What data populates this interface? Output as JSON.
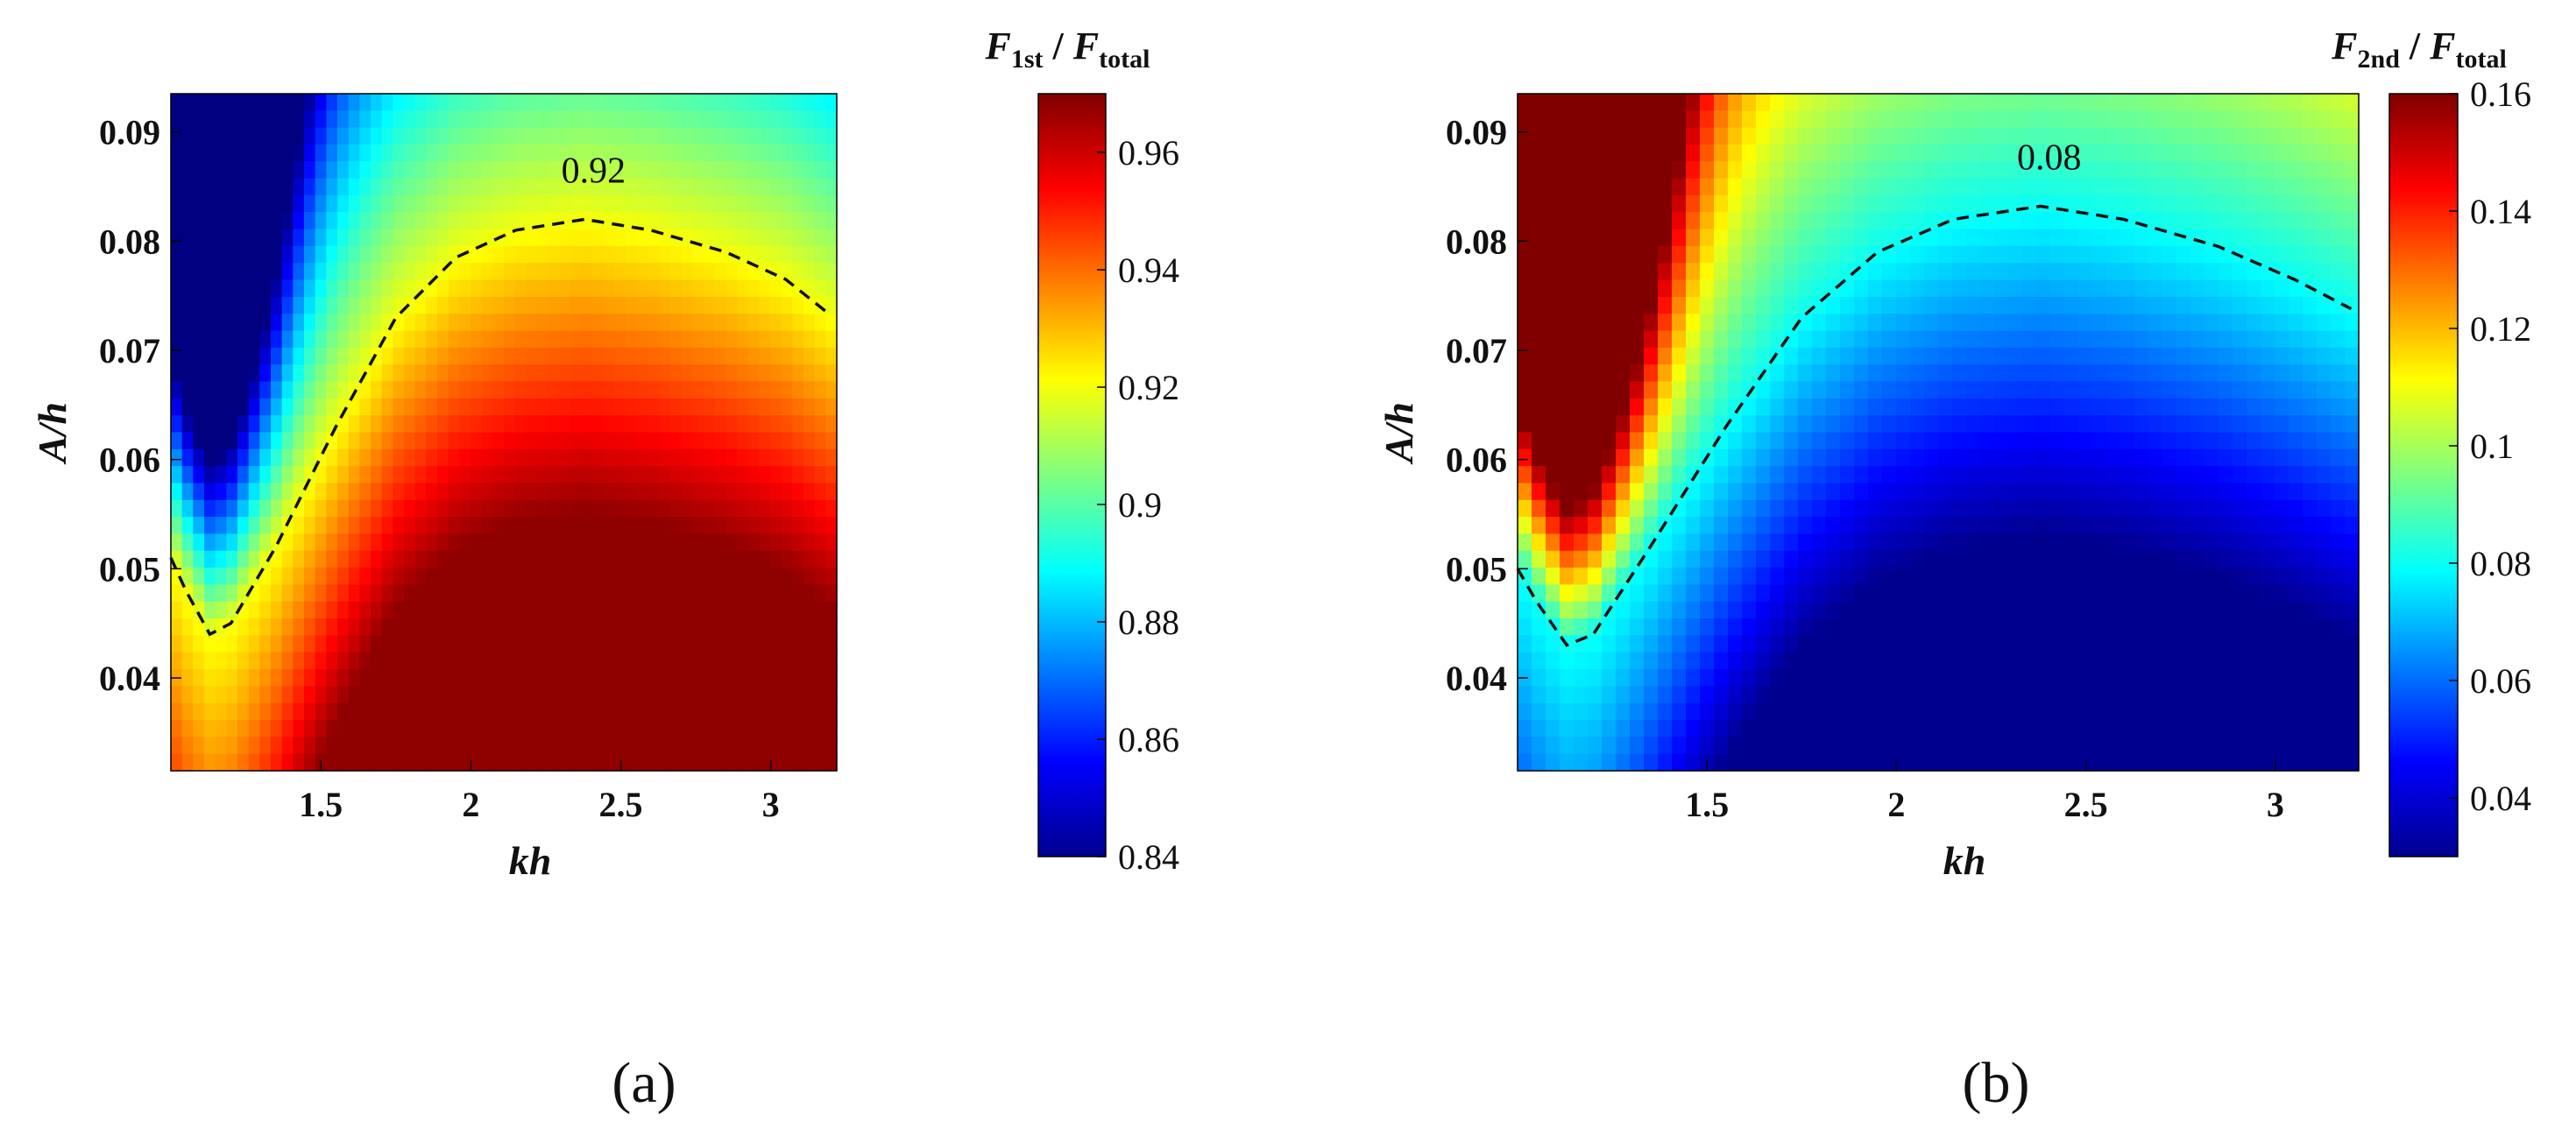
{
  "chart_data": [
    {
      "type": "heatmap",
      "panel_label": "(a)",
      "title": "",
      "xlabel": "kh",
      "ylabel": "A/h",
      "xlim": [
        1.0,
        3.22
      ],
      "ylim": [
        0.0315,
        0.0935
      ],
      "xticks": [
        1.5,
        2,
        2.5,
        3
      ],
      "xtick_labels": [
        "1.5",
        "2",
        "2.5",
        "3"
      ],
      "yticks": [
        0.04,
        0.05,
        0.06,
        0.07,
        0.08,
        0.09
      ],
      "ytick_labels": [
        "0.04",
        "0.05",
        "0.06",
        "0.07",
        "0.08",
        "0.09"
      ],
      "colorbar": {
        "label_main": "F",
        "label_sub": "1st",
        "label_sep": " / ",
        "label_main2": "F",
        "label_sub2": "total",
        "range": [
          0.84,
          0.97
        ],
        "ticks": [
          0.84,
          0.86,
          0.88,
          0.9,
          0.92,
          0.94,
          0.96
        ],
        "tick_labels": [
          "0.84",
          "0.86",
          "0.88",
          "0.9",
          "0.92",
          "0.94",
          "0.96"
        ],
        "colormap": "jet"
      },
      "field_description": "ratio of first-harmonic force to total force; low near kh≈1.13 at large A/h, increasing toward larger kh and smaller A/h",
      "contour": {
        "level": 0.92,
        "label": "0.92",
        "style": "dashed",
        "points": [
          [
            1.0,
            0.051
          ],
          [
            1.05,
            0.048
          ],
          [
            1.13,
            0.044
          ],
          [
            1.2,
            0.045
          ],
          [
            1.35,
            0.052
          ],
          [
            1.55,
            0.063
          ],
          [
            1.75,
            0.073
          ],
          [
            1.95,
            0.0785
          ],
          [
            2.15,
            0.081
          ],
          [
            2.38,
            0.082
          ],
          [
            2.6,
            0.081
          ],
          [
            2.85,
            0.079
          ],
          [
            3.05,
            0.0765
          ],
          [
            3.2,
            0.0732
          ]
        ]
      }
    },
    {
      "type": "heatmap",
      "panel_label": "(b)",
      "title": "",
      "xlabel": "kh",
      "ylabel": "A/h",
      "xlim": [
        1.0,
        3.22
      ],
      "ylim": [
        0.0315,
        0.0935
      ],
      "xticks": [
        1.5,
        2,
        2.5,
        3
      ],
      "xtick_labels": [
        "1.5",
        "2",
        "2.5",
        "3"
      ],
      "yticks": [
        0.04,
        0.05,
        0.06,
        0.07,
        0.08,
        0.09
      ],
      "ytick_labels": [
        "0.04",
        "0.05",
        "0.06",
        "0.07",
        "0.08",
        "0.09"
      ],
      "colorbar": {
        "label_main": "F",
        "label_sub": "2nd",
        "label_sep": " / ",
        "label_main2": "F",
        "label_sub2": "total",
        "range": [
          0.03,
          0.16
        ],
        "ticks": [
          0.04,
          0.06,
          0.08,
          0.1,
          0.12,
          0.14,
          0.16
        ],
        "tick_labels": [
          "0.04",
          "0.06",
          "0.08",
          "0.1",
          "0.12",
          "0.14",
          "0.16"
        ],
        "colormap": "jet"
      },
      "field_description": "ratio of second-harmonic force to total force; high near kh≈1.13 at large A/h, decreasing toward larger kh and smaller A/h",
      "contour": {
        "level": 0.08,
        "label": "0.08",
        "style": "dashed",
        "points": [
          [
            1.0,
            0.05
          ],
          [
            1.05,
            0.047
          ],
          [
            1.13,
            0.043
          ],
          [
            1.2,
            0.044
          ],
          [
            1.35,
            0.052
          ],
          [
            1.55,
            0.063
          ],
          [
            1.75,
            0.073
          ],
          [
            1.95,
            0.079
          ],
          [
            2.15,
            0.082
          ],
          [
            2.38,
            0.0832
          ],
          [
            2.6,
            0.082
          ],
          [
            2.85,
            0.0795
          ],
          [
            3.05,
            0.0765
          ],
          [
            3.2,
            0.0738
          ]
        ]
      }
    }
  ]
}
